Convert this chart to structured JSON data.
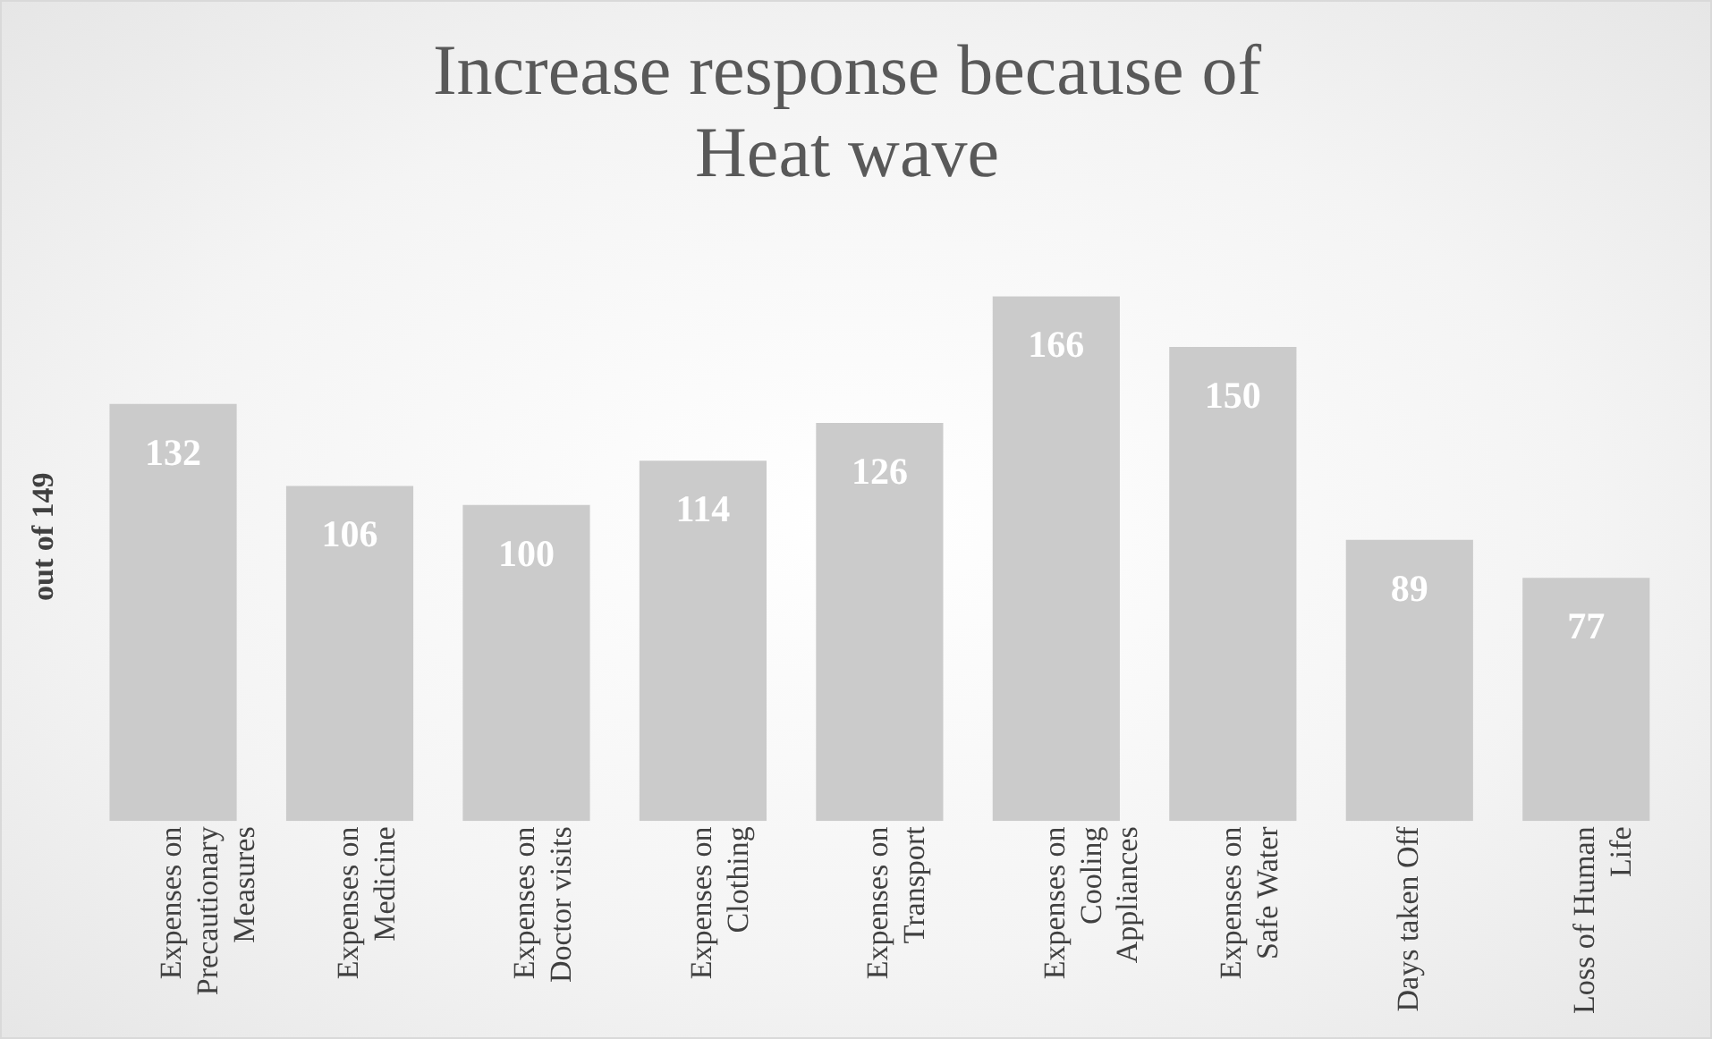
{
  "chart_data": {
    "type": "bar",
    "title": "Increase response because of Heat wave",
    "ylabel": "out of 149",
    "categories": [
      "Expenses on Precautionary Measures",
      "Expenses on Medicine",
      "Expenses on Doctor visits",
      "Expenses on Clothing",
      "Expenses on Transport",
      "Expenses on Cooling Appliances",
      "Expenses on Safe Water",
      "Days taken Off",
      "Loss of Human Life"
    ],
    "values": [
      132,
      106,
      100,
      114,
      126,
      166,
      150,
      89,
      77
    ],
    "color": "#cbcbcb",
    "data_labels": true,
    "grid": false,
    "legend": false
  }
}
